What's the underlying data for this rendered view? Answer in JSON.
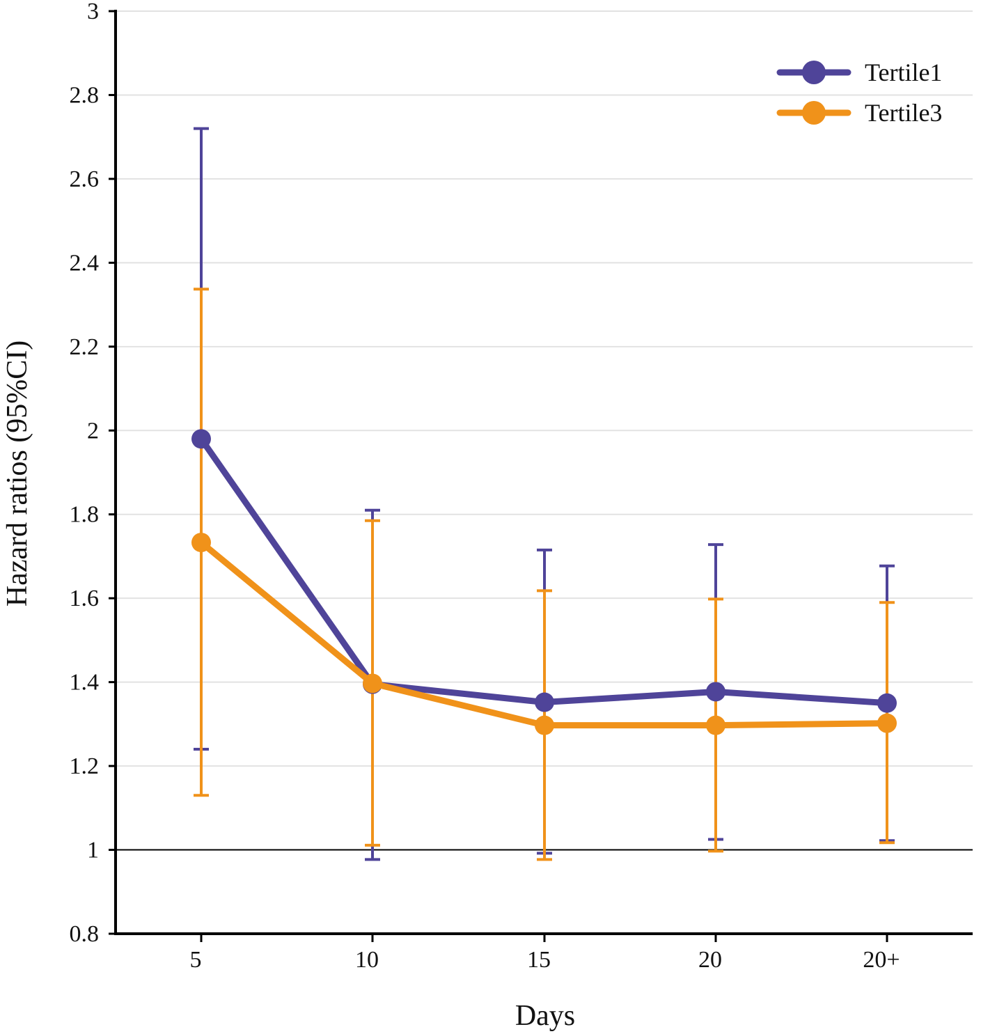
{
  "chart_data": {
    "type": "line",
    "title": "",
    "xlabel": "Days",
    "ylabel": "Hazard ratios (95%CI)",
    "categories": [
      "5",
      "10",
      "15",
      "20",
      "20+"
    ],
    "ylim": [
      0.8,
      3
    ],
    "yticks": [
      "0.8",
      "1",
      "1.2",
      "1.4",
      "1.6",
      "1.8",
      "2",
      "2.2",
      "2.4",
      "2.6",
      "2.8",
      "3"
    ],
    "ytick_values": [
      0.8,
      1.0,
      1.2,
      1.4,
      1.6,
      1.8,
      2.0,
      2.2,
      2.4,
      2.6,
      2.8,
      3.0
    ],
    "grid": true,
    "reference_line": 1.0,
    "legend_position": "top-right",
    "series": [
      {
        "name": "Tertile1",
        "color": "#4f4499",
        "values": [
          1.98,
          1.395,
          1.352,
          1.377,
          1.35
        ],
        "ci_lower": [
          1.24,
          0.977,
          0.992,
          1.025,
          1.022
        ],
        "ci_upper": [
          2.72,
          1.81,
          1.715,
          1.728,
          1.677
        ]
      },
      {
        "name": "Tertile3",
        "color": "#f0921a",
        "values": [
          1.733,
          1.397,
          1.297,
          1.297,
          1.302
        ],
        "ci_lower": [
          1.13,
          1.011,
          0.977,
          0.997,
          1.017
        ],
        "ci_upper": [
          2.337,
          1.785,
          1.618,
          1.598,
          1.59
        ]
      }
    ]
  }
}
